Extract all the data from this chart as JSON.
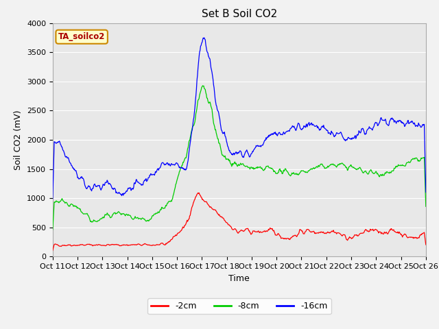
{
  "title": "Set B Soil CO2",
  "xlabel": "Time",
  "ylabel": "Soil CO2 (mV)",
  "ylim": [
    0,
    4000
  ],
  "yticks": [
    0,
    500,
    1000,
    1500,
    2000,
    2500,
    3000,
    3500,
    4000
  ],
  "xtick_labels": [
    "Oct 11",
    "Oct 12",
    "Oct 13",
    "Oct 14",
    "Oct 15",
    "Oct 16",
    "Oct 17",
    "Oct 18",
    "Oct 19",
    "Oct 20",
    "Oct 21",
    "Oct 22",
    "Oct 23",
    "Oct 24",
    "Oct 25",
    "Oct 26"
  ],
  "legend_labels": [
    "-2cm",
    "-8cm",
    "-16cm"
  ],
  "line_colors": [
    "#ff0000",
    "#00cc00",
    "#0000ff"
  ],
  "annotation_text": "TA_soilco2",
  "annotation_bg": "#ffffcc",
  "annotation_border": "#cc8800",
  "plot_bg_color": "#e8e8e8",
  "fig_bg_color": "#f2f2f2",
  "grid_color": "#ffffff",
  "title_fontsize": 11,
  "axis_label_fontsize": 9,
  "tick_fontsize": 8,
  "legend_fontsize": 9
}
